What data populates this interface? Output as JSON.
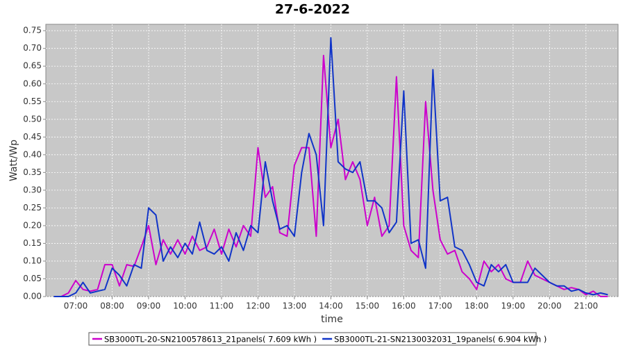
{
  "chart_data": {
    "type": "line",
    "title": "27-6-2022",
    "xlabel": "time",
    "ylabel": "Watt/Wp",
    "x": [
      6.4,
      6.6,
      6.8,
      7.0,
      7.2,
      7.4,
      7.6,
      7.8,
      8.0,
      8.2,
      8.4,
      8.6,
      8.8,
      9.0,
      9.2,
      9.4,
      9.6,
      9.8,
      10.0,
      10.2,
      10.4,
      10.6,
      10.8,
      11.0,
      11.2,
      11.4,
      11.6,
      11.8,
      12.0,
      12.2,
      12.4,
      12.6,
      12.8,
      13.0,
      13.2,
      13.4,
      13.6,
      13.8,
      14.0,
      14.2,
      14.4,
      14.6,
      14.8,
      15.0,
      15.2,
      15.4,
      15.6,
      15.8,
      16.0,
      16.2,
      16.4,
      16.6,
      16.8,
      17.0,
      17.2,
      17.4,
      17.6,
      17.8,
      18.0,
      18.2,
      18.4,
      18.6,
      18.8,
      19.0,
      19.2,
      19.4,
      19.6,
      19.8,
      20.0,
      20.2,
      20.4,
      20.6,
      20.8,
      21.0,
      21.2,
      21.4,
      21.6
    ],
    "series": [
      {
        "name": "SB3000TL-20-SN2100578613_21panels( 7.609 kWh )",
        "color": "#cc00cc",
        "values": [
          0,
          0,
          0.01,
          0.045,
          0.02,
          0.015,
          0.02,
          0.09,
          0.09,
          0.03,
          0.09,
          0.085,
          0.14,
          0.2,
          0.09,
          0.16,
          0.12,
          0.16,
          0.12,
          0.17,
          0.13,
          0.14,
          0.19,
          0.12,
          0.19,
          0.14,
          0.2,
          0.17,
          0.42,
          0.28,
          0.31,
          0.18,
          0.17,
          0.37,
          0.42,
          0.42,
          0.17,
          0.68,
          0.42,
          0.5,
          0.33,
          0.38,
          0.33,
          0.2,
          0.28,
          0.17,
          0.2,
          0.62,
          0.2,
          0.13,
          0.11,
          0.55,
          0.3,
          0.16,
          0.12,
          0.13,
          0.07,
          0.05,
          0.02,
          0.1,
          0.07,
          0.09,
          0.05,
          0.04,
          0.04,
          0.1,
          0.06,
          0.05,
          0.04,
          0.03,
          0.02,
          0.025,
          0.02,
          0.005,
          0.015,
          0,
          0
        ]
      },
      {
        "name": "SB3000TL-21-SN2130032031_19panels( 6.904 kWh )",
        "color": "#1034c8",
        "values": [
          0,
          0,
          0,
          0.01,
          0.04,
          0.01,
          0.015,
          0.02,
          0.08,
          0.06,
          0.03,
          0.09,
          0.08,
          0.25,
          0.23,
          0.1,
          0.14,
          0.11,
          0.15,
          0.12,
          0.21,
          0.13,
          0.12,
          0.14,
          0.1,
          0.18,
          0.13,
          0.2,
          0.18,
          0.38,
          0.27,
          0.19,
          0.2,
          0.17,
          0.35,
          0.46,
          0.4,
          0.2,
          0.73,
          0.38,
          0.36,
          0.35,
          0.38,
          0.27,
          0.27,
          0.25,
          0.18,
          0.21,
          0.58,
          0.15,
          0.16,
          0.08,
          0.64,
          0.27,
          0.28,
          0.14,
          0.13,
          0.09,
          0.04,
          0.03,
          0.09,
          0.07,
          0.09,
          0.04,
          0.04,
          0.04,
          0.08,
          0.06,
          0.04,
          0.03,
          0.03,
          0.015,
          0.02,
          0.01,
          0.005,
          0.01,
          0.005
        ]
      }
    ],
    "xlim": [
      6.18,
      21.88
    ],
    "xticks": [
      {
        "value": 7,
        "label": "07:00"
      },
      {
        "value": 8,
        "label": "08:00"
      },
      {
        "value": 9,
        "label": "09:00"
      },
      {
        "value": 10,
        "label": "10:00"
      },
      {
        "value": 11,
        "label": "11:00"
      },
      {
        "value": 12,
        "label": "12:00"
      },
      {
        "value": 13,
        "label": "13:00"
      },
      {
        "value": 14,
        "label": "14:00"
      },
      {
        "value": 15,
        "label": "15:00"
      },
      {
        "value": 16,
        "label": "16:00"
      },
      {
        "value": 17,
        "label": "17:00"
      },
      {
        "value": 18,
        "label": "18:00"
      },
      {
        "value": 19,
        "label": "19:00"
      },
      {
        "value": 20,
        "label": "20:00"
      },
      {
        "value": 21,
        "label": "21:00"
      }
    ],
    "ylim": [
      0,
      0.768
    ],
    "yticks": [
      {
        "value": 0,
        "label": "0.00"
      },
      0.05,
      {
        "value": 0.1,
        "label": "0.10"
      },
      0.15,
      {
        "value": 0.2,
        "label": "0.20"
      },
      0.25,
      {
        "value": 0.3,
        "label": "0.30"
      },
      0.35,
      {
        "value": 0.4,
        "label": "0.40"
      },
      0.45,
      {
        "value": 0.5,
        "label": "0.50"
      },
      0.55,
      {
        "value": 0.6,
        "label": "0.60"
      },
      0.65,
      {
        "value": 0.7,
        "label": "0.70"
      },
      0.75
    ],
    "grid": true
  }
}
